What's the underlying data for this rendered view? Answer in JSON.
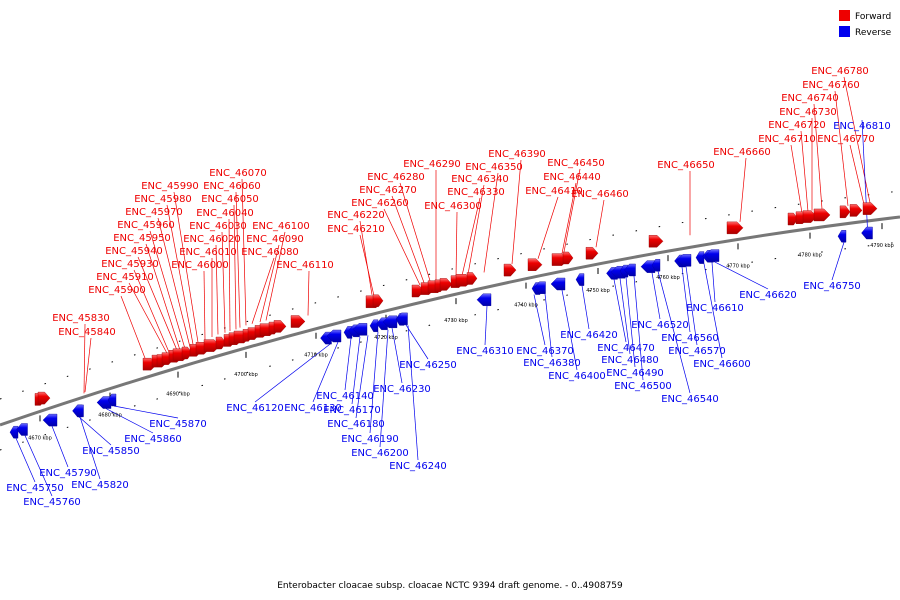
{
  "legend": [
    {
      "label": "Forward",
      "color": "#ee0000"
    },
    {
      "label": "Reverse",
      "color": "#0000ee"
    }
  ],
  "caption": "Enterobacter cloacae subsp. cloacae NCTC 9394 draft genome. - 0..4908759",
  "scale_ticks": [
    "4670 kbp",
    "4680 kbp",
    "4690 kbp",
    "4700 kbp",
    "4710 kbp",
    "4720 kbp",
    "4730 kbp",
    "4740 kbp",
    "4750 kbp",
    "4760 kbp",
    "4770 kbp",
    "4780 kbp",
    "4790 kbp"
  ],
  "forward_genes": [
    "ENC_45830",
    "ENC_45840",
    "ENC_45900",
    "ENC_45910",
    "ENC_45930",
    "ENC_45940",
    "ENC_45950",
    "ENC_45960",
    "ENC_45970",
    "ENC_45980",
    "ENC_45990",
    "ENC_46000",
    "ENC_46010",
    "ENC_46020",
    "ENC_46030",
    "ENC_46040",
    "ENC_46050",
    "ENC_46060",
    "ENC_46070",
    "ENC_46080",
    "ENC_46090",
    "ENC_46100",
    "ENC_46110",
    "ENC_46210",
    "ENC_46220",
    "ENC_46260",
    "ENC_46270",
    "ENC_46280",
    "ENC_46290",
    "ENC_46300",
    "ENC_46330",
    "ENC_46340",
    "ENC_46350",
    "ENC_46390",
    "ENC_46410",
    "ENC_46440",
    "ENC_46450",
    "ENC_46460",
    "ENC_46650",
    "ENC_46660",
    "ENC_46710",
    "ENC_46720",
    "ENC_46730",
    "ENC_46740",
    "ENC_46760",
    "ENC_46770",
    "ENC_46780"
  ],
  "reverse_genes": [
    "ENC_45750",
    "ENC_45760",
    "ENC_45790",
    "ENC_45820",
    "ENC_45850",
    "ENC_45860",
    "ENC_45870",
    "ENC_46120",
    "ENC_46130",
    "ENC_46140",
    "ENC_46170",
    "ENC_46180",
    "ENC_46190",
    "ENC_46200",
    "ENC_46230",
    "ENC_46240",
    "ENC_46250",
    "ENC_46310",
    "ENC_46370",
    "ENC_46380",
    "ENC_46400",
    "ENC_46420",
    "ENC_46470",
    "ENC_46480",
    "ENC_46490",
    "ENC_46500",
    "ENC_46520",
    "ENC_46540",
    "ENC_46560",
    "ENC_46570",
    "ENC_46600",
    "ENC_46610",
    "ENC_46620",
    "ENC_46750",
    "ENC_46810"
  ]
}
